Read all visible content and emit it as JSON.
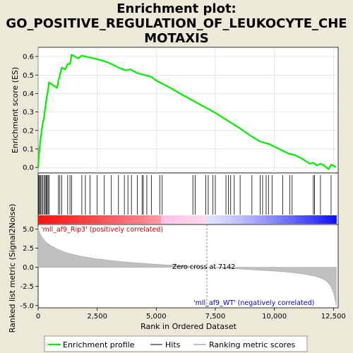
{
  "title_lines": [
    "Enrichment plot:",
    "GO_POSITIVE_REGULATION_OF_LEUKOCYTE_CHE",
    "MOTAXIS"
  ],
  "colors": {
    "enrichment_line": "#00ee00",
    "hits": "#000000",
    "ranking_fill": "#c0c0c0",
    "pos_label": "#cc0000",
    "neg_label": "#0000cc",
    "zero_cross_line": "#808080"
  },
  "chart_data": {
    "type": "line",
    "xlabel": "Rank in Ordered Dataset",
    "x_ticks": [
      0,
      2500,
      5000,
      7500,
      10000,
      12500
    ],
    "x_tick_labels": [
      "0",
      "2,500",
      "5,000",
      "7,500",
      "10,000",
      "12,500"
    ],
    "xlim": [
      0,
      12700
    ],
    "es_panel": {
      "ylabel": "Enrichment score (ES)",
      "ylim": [
        -0.03,
        0.65
      ],
      "y_ticks": [
        0.0,
        0.1,
        0.2,
        0.3,
        0.4,
        0.5,
        0.6
      ],
      "y_tick_labels": [
        "0.0",
        "0.1",
        "0.2",
        "0.3",
        "0.4",
        "0.5",
        "0.6"
      ],
      "grid": true,
      "series": [
        {
          "name": "Enrichment profile",
          "x": [
            0,
            30,
            60,
            100,
            150,
            200,
            260,
            300,
            340,
            380,
            420,
            460,
            800,
            860,
            920,
            1000,
            1150,
            1250,
            1350,
            1420,
            1700,
            1850,
            2000,
            2200,
            2500,
            2800,
            3100,
            3400,
            3700,
            3900,
            4200,
            4500,
            4800,
            5000,
            5300,
            5600,
            6000,
            6500,
            7000,
            7142,
            7500,
            8000,
            8500,
            9000,
            9400,
            9800,
            10200,
            10600,
            10900,
            11200,
            11500,
            11650,
            11800,
            11950,
            12100,
            12300,
            12400,
            12500,
            12600
          ],
          "y": [
            0.0,
            0.06,
            0.1,
            0.15,
            0.2,
            0.24,
            0.28,
            0.32,
            0.36,
            0.39,
            0.42,
            0.46,
            0.43,
            0.47,
            0.5,
            0.54,
            0.53,
            0.56,
            0.56,
            0.61,
            0.59,
            0.605,
            0.6,
            0.595,
            0.585,
            0.575,
            0.56,
            0.54,
            0.525,
            0.53,
            0.51,
            0.5,
            0.49,
            0.47,
            0.45,
            0.43,
            0.4,
            0.365,
            0.33,
            0.32,
            0.295,
            0.255,
            0.215,
            0.17,
            0.14,
            0.125,
            0.1,
            0.075,
            0.065,
            0.045,
            0.02,
            0.025,
            0.01,
            0.02,
            0.01,
            -0.01,
            0.015,
            0.01,
            0.0
          ]
        }
      ]
    },
    "hits_panel": {
      "positions": [
        30,
        60,
        100,
        150,
        200,
        260,
        300,
        340,
        380,
        420,
        460,
        860,
        920,
        1000,
        1250,
        1350,
        1420,
        1850,
        2000,
        2200,
        2500,
        2800,
        3100,
        3400,
        3650,
        3800,
        3950,
        4200,
        4400,
        4450,
        4600,
        4800,
        5150,
        5250,
        6550,
        6650,
        7100,
        7200,
        7400,
        7500,
        7950,
        8050,
        8150,
        8300,
        8550,
        9050,
        9400,
        9500,
        9650,
        9750,
        9900,
        10350,
        10650,
        10750,
        11650,
        11700,
        11950,
        12400
      ]
    },
    "ranking_panel": {
      "ylabel": "Ranked list metric (Signal2Noise)",
      "ylim": [
        -5.3,
        5.6
      ],
      "y_ticks": [
        5.0,
        2.5,
        0.0,
        -2.5,
        -5.0
      ],
      "y_tick_labels": [
        "5.0",
        "2.5",
        "0.0",
        "-2.5",
        "-5.0"
      ],
      "curve_x": [
        0,
        50,
        150,
        300,
        500,
        800,
        1200,
        1800,
        2500,
        3500,
        4500,
        5500,
        6500,
        7142,
        8000,
        9000,
        10000,
        10800,
        11300,
        11700,
        12000,
        12200,
        12350,
        12450,
        12520,
        12580,
        12620
      ],
      "curve_y": [
        5.3,
        4.6,
        4.0,
        3.4,
        2.9,
        2.4,
        1.9,
        1.45,
        1.1,
        0.75,
        0.5,
        0.3,
        0.12,
        0.0,
        -0.12,
        -0.3,
        -0.5,
        -0.7,
        -0.9,
        -1.15,
        -1.45,
        -1.8,
        -2.3,
        -2.9,
        -3.6,
        -4.4,
        -5.0
      ],
      "pos_label": "'mll_af9_Rip3' (positively correlated)",
      "neg_label": "'mll_af9_WT' (negatively correlated)",
      "zero_cross_label": "Zero cross at 7142",
      "zero_cross": 7142
    },
    "legend": [
      {
        "name": "Enrichment profile"
      },
      {
        "name": "Hits"
      },
      {
        "name": "Ranking metric scores"
      }
    ]
  }
}
